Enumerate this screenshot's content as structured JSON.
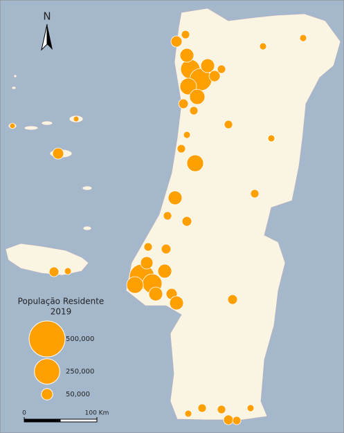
{
  "north_label": "N",
  "legend": {
    "title": [
      "População Residente",
      "2019"
    ],
    "sizes": [
      {
        "value": 500000,
        "label": "500,000"
      },
      {
        "value": 250000,
        "label": "250,000"
      },
      {
        "value": 50000,
        "label": "50,000"
      }
    ],
    "color": "#ff9f00"
  },
  "scale_bar": {
    "ticks": [
      0,
      {
        "value": 100,
        "label": "100 Km"
      }
    ]
  }
}
